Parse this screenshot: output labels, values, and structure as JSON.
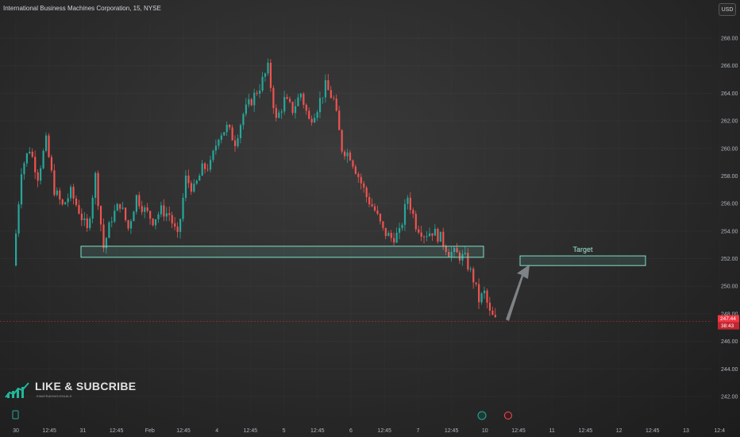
{
  "chart_data": {
    "type": "candlestick",
    "title": "International Business Machines Corporation, 15, NYSE",
    "currency": "USD",
    "ylim": [
      240.5,
      269.5
    ],
    "y_ticks": [
      "268.00",
      "266.00",
      "264.00",
      "262.00",
      "260.00",
      "258.00",
      "256.00",
      "254.00",
      "252.00",
      "250.00",
      "248.00",
      "246.00",
      "244.00",
      "242.00"
    ],
    "x_ticks": [
      "30",
      "12:45",
      "31",
      "12:45",
      "Feb",
      "12:45",
      "4",
      "12:45",
      "5",
      "12:45",
      "6",
      "12:45",
      "7",
      "12:45",
      "10",
      "12:45",
      "11",
      "12:45",
      "12",
      "12:45",
      "13",
      "12:4"
    ],
    "price_path": [
      [
        0,
        251.5
      ],
      [
        1,
        258.5
      ],
      [
        2,
        260.0
      ],
      [
        3,
        258.0
      ],
      [
        4,
        260.5
      ],
      [
        5,
        257.0
      ],
      [
        6,
        255.8
      ],
      [
        7,
        256.8
      ],
      [
        8,
        255.5
      ],
      [
        9,
        254.0
      ],
      [
        10,
        258.0
      ],
      [
        11,
        252.8
      ],
      [
        12,
        255.0
      ],
      [
        13,
        256.0
      ],
      [
        14,
        254.2
      ],
      [
        15,
        256.5
      ],
      [
        16,
        255.5
      ],
      [
        17,
        254.8
      ],
      [
        18,
        255.5
      ],
      [
        19,
        255.2
      ],
      [
        20,
        253.5
      ],
      [
        21,
        257.8
      ],
      [
        22,
        257.0
      ],
      [
        23,
        258.5
      ],
      [
        24,
        258.8
      ],
      [
        25,
        261.0
      ],
      [
        26,
        261.5
      ],
      [
        27,
        260.5
      ],
      [
        28,
        262.5
      ],
      [
        29,
        263.5
      ],
      [
        30,
        264.5
      ],
      [
        31,
        265.8
      ],
      [
        32,
        262.0
      ],
      [
        33,
        263.5
      ],
      [
        34,
        262.8
      ],
      [
        35,
        264.0
      ],
      [
        36,
        262.0
      ],
      [
        37,
        263.0
      ],
      [
        38,
        264.5
      ],
      [
        39,
        263.5
      ],
      [
        40,
        260.0
      ],
      [
        41,
        259.5
      ],
      [
        42,
        258.0
      ],
      [
        43,
        256.5
      ],
      [
        44,
        255.5
      ],
      [
        45,
        254.0
      ],
      [
        46,
        253.5
      ],
      [
        47,
        253.8
      ],
      [
        48,
        256.5
      ],
      [
        49,
        254.5
      ],
      [
        50,
        253.8
      ],
      [
        51,
        254.0
      ],
      [
        52,
        253.5
      ],
      [
        53,
        252.5
      ],
      [
        54,
        252.3
      ],
      [
        55,
        252.0
      ],
      [
        56,
        250.5
      ],
      [
        57,
        249.0
      ],
      [
        58,
        249.5
      ],
      [
        59,
        248.0
      ],
      [
        60,
        247.5
      ]
    ],
    "last_price": "247.44",
    "countdown": "38:43",
    "support_zone": [
      252.1,
      252.9
    ],
    "target_zone": [
      251.5,
      252.2
    ],
    "target_label": "Target"
  },
  "watermark": {
    "title": "LIKE & SUBCRIBE",
    "subtitle": "SIMATRADINGVISUALS"
  },
  "colors": {
    "up": "#26a69a",
    "down": "#ef5350",
    "zone_border": "#7ee0c8",
    "last_price": "#f23645"
  }
}
